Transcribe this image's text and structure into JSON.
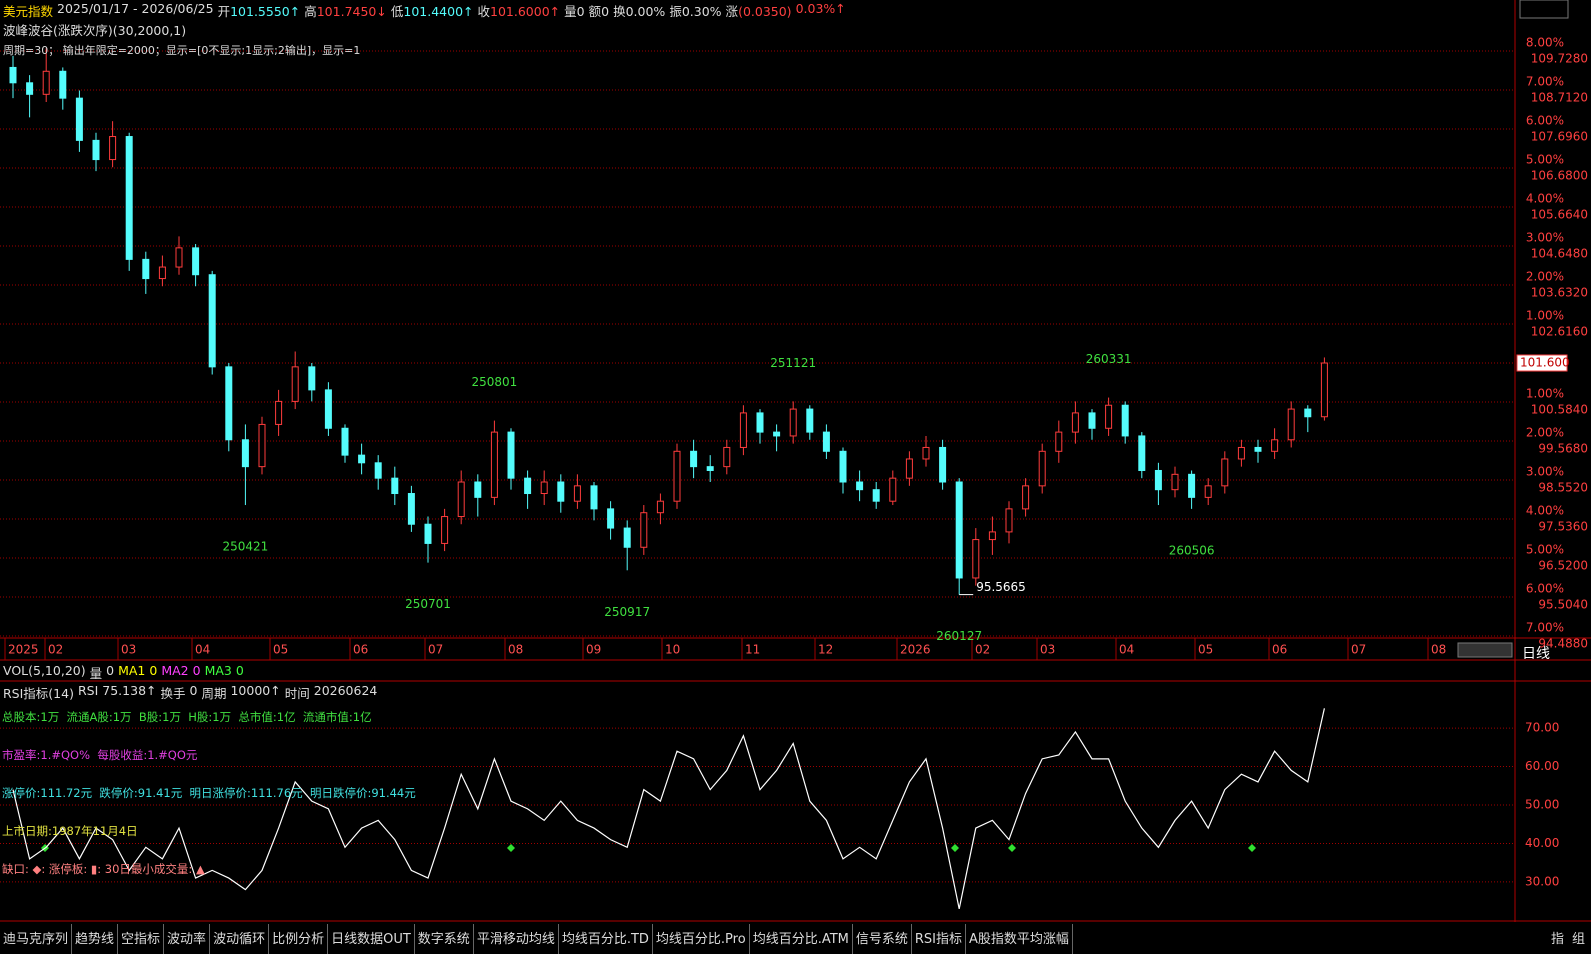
{
  "header": {
    "title": "美元指数",
    "range": "2025/01/17 - 2026/06/25",
    "fields": [
      {
        "label": "开",
        "value": "101.5550↑",
        "color": "#54fcfc"
      },
      {
        "label": "高",
        "value": "101.7450↓",
        "color": "#ff4040"
      },
      {
        "label": "低",
        "value": "101.4400↑",
        "color": "#54fcfc"
      },
      {
        "label": "收",
        "value": "101.6000↑",
        "color": "#ff4040"
      },
      {
        "label": "量",
        "value": "0",
        "color": "#dddddd"
      },
      {
        "label": "额",
        "value": "0",
        "color": "#dddddd"
      },
      {
        "label": "换",
        "value": "0.00%",
        "color": "#dddddd"
      },
      {
        "label": "振",
        "value": "0.30%",
        "color": "#dddddd"
      },
      {
        "label": "涨",
        "value": "(0.0350)",
        "color": "#ff4040"
      },
      {
        "label": "",
        "value": "0.03%↑",
        "color": "#ff4040"
      }
    ]
  },
  "indicator": {
    "title": "波峰波谷(涨跌次序)(30,2000,1)",
    "params": "周期=30； 输出年限定=2000；显示=[0不显示;1显示;2输出]，显示=1"
  },
  "chart_data": [
    {
      "type": "candlestick",
      "open": [
        109.3,
        108.9,
        108.6,
        109.2,
        108.5,
        107.4,
        106.9,
        107.5,
        104.3,
        103.8,
        104.1,
        104.6,
        103.9,
        101.5,
        99.6,
        98.9,
        100.0,
        100.6,
        101.5,
        100.9,
        99.9,
        99.2,
        99.0,
        98.6,
        98.2,
        97.4,
        96.9,
        97.6,
        98.5,
        98.1,
        99.8,
        98.6,
        98.2,
        98.5,
        98.0,
        98.4,
        97.8,
        97.3,
        96.8,
        97.7,
        98.0,
        99.3,
        98.9,
        98.9,
        99.4,
        100.3,
        99.8,
        99.7,
        100.4,
        99.8,
        99.3,
        98.5,
        98.3,
        98.0,
        98.6,
        99.1,
        99.4,
        98.5,
        96.0,
        97.0,
        97.2,
        97.8,
        98.4,
        99.3,
        99.8,
        100.3,
        99.9,
        100.5,
        99.7,
        98.8,
        98.3,
        98.7,
        98.1,
        98.4,
        99.1,
        99.4,
        99.3,
        99.6,
        100.4,
        100.2
      ],
      "high": [
        109.6,
        109.1,
        109.8,
        109.3,
        108.7,
        107.6,
        107.9,
        107.6,
        104.5,
        104.4,
        104.9,
        104.7,
        104.0,
        101.6,
        100.0,
        100.2,
        100.9,
        101.9,
        101.6,
        101.1,
        100.0,
        99.5,
        99.2,
        98.9,
        98.4,
        97.6,
        97.8,
        98.8,
        98.7,
        100.1,
        99.9,
        98.8,
        98.8,
        98.7,
        98.7,
        98.5,
        98.0,
        97.5,
        97.9,
        98.2,
        99.5,
        99.6,
        99.2,
        99.6,
        100.5,
        100.4,
        100.0,
        100.6,
        100.5,
        100.0,
        99.4,
        98.8,
        98.5,
        98.8,
        99.3,
        99.7,
        99.6,
        98.6,
        97.3,
        97.6,
        98.0,
        98.6,
        99.5,
        100.1,
        100.6,
        100.4,
        100.7,
        100.6,
        99.8,
        99.0,
        98.9,
        98.8,
        98.6,
        99.3,
        99.6,
        99.6,
        99.9,
        100.6,
        100.5,
        101.745
      ],
      "low": [
        108.5,
        108.0,
        108.4,
        108.2,
        107.1,
        106.6,
        106.7,
        104.0,
        103.4,
        103.6,
        103.9,
        103.6,
        101.3,
        99.3,
        97.9,
        98.7,
        99.7,
        100.4,
        100.6,
        99.7,
        99.0,
        98.7,
        98.3,
        97.9,
        97.2,
        96.4,
        96.7,
        97.4,
        97.6,
        97.9,
        98.3,
        97.8,
        97.9,
        97.7,
        97.8,
        97.5,
        97.0,
        96.2,
        96.6,
        97.4,
        97.8,
        98.6,
        98.5,
        98.7,
        99.2,
        99.5,
        99.3,
        99.5,
        99.6,
        99.1,
        98.2,
        98.0,
        97.8,
        97.9,
        98.4,
        98.9,
        98.3,
        95.5665,
        95.8,
        96.6,
        96.9,
        97.6,
        98.2,
        99.0,
        99.5,
        99.6,
        99.7,
        99.5,
        98.6,
        97.9,
        98.1,
        97.8,
        97.9,
        98.2,
        98.9,
        99.0,
        99.1,
        99.4,
        99.8,
        100.1
      ],
      "close": [
        108.9,
        108.6,
        109.2,
        108.5,
        107.4,
        106.9,
        107.5,
        104.3,
        103.8,
        104.1,
        104.6,
        103.9,
        101.5,
        99.6,
        98.9,
        100.0,
        100.6,
        101.5,
        100.9,
        99.9,
        99.2,
        99.0,
        98.6,
        98.2,
        97.4,
        96.9,
        97.6,
        98.5,
        98.1,
        99.8,
        98.6,
        98.2,
        98.5,
        98.0,
        98.4,
        97.8,
        97.3,
        96.8,
        97.7,
        98.0,
        99.3,
        98.9,
        98.8,
        99.4,
        100.3,
        99.8,
        99.7,
        100.4,
        99.8,
        99.3,
        98.5,
        98.3,
        98.0,
        98.6,
        99.1,
        99.4,
        98.5,
        96.0,
        97.0,
        97.2,
        97.8,
        98.4,
        99.3,
        99.8,
        100.3,
        99.9,
        100.5,
        99.7,
        98.8,
        98.3,
        98.7,
        98.1,
        98.4,
        99.1,
        99.4,
        99.3,
        99.6,
        100.4,
        100.2,
        101.6
      ],
      "up_color": "#ff3c3c",
      "down_color": "#54fcfc",
      "ylim": [
        94.436,
        110.015
      ],
      "yticks": [
        {
          "value": 109.728,
          "label": "109.7280"
        },
        {
          "value": 108.712,
          "label": "108.7120"
        },
        {
          "value": 107.696,
          "label": "107.6960"
        },
        {
          "value": 106.68,
          "label": "106.6800"
        },
        {
          "value": 105.664,
          "label": "105.6640"
        },
        {
          "value": 104.648,
          "label": "104.6480"
        },
        {
          "value": 103.632,
          "label": "103.6320"
        },
        {
          "value": 102.616,
          "label": "102.6160"
        },
        {
          "value": 100.584,
          "label": "100.5840"
        },
        {
          "value": 99.568,
          "label": "99.5680"
        },
        {
          "value": 98.552,
          "label": "98.5520"
        },
        {
          "value": 97.536,
          "label": "97.5360"
        },
        {
          "value": 96.52,
          "label": "96.5200"
        },
        {
          "value": 95.504,
          "label": "95.5040"
        },
        {
          "value": 94.488,
          "label": "94.4880"
        }
      ],
      "pct_ticks": [
        {
          "value": 8,
          "label": "8.00%"
        },
        {
          "value": 7,
          "label": "7.00%"
        },
        {
          "value": 6,
          "label": "6.00%"
        },
        {
          "value": 5,
          "label": "5.00%"
        },
        {
          "value": 4,
          "label": "4.00%"
        },
        {
          "value": 3,
          "label": "3.00%"
        },
        {
          "value": 2,
          "label": "2.00%"
        },
        {
          "value": 1,
          "label": "1.00%"
        },
        {
          "value": -1,
          "label": "1.00%"
        },
        {
          "value": -2,
          "label": "2.00%"
        },
        {
          "value": -3,
          "label": "3.00%"
        },
        {
          "value": -4,
          "label": "4.00%"
        },
        {
          "value": -5,
          "label": "5.00%"
        },
        {
          "value": -6,
          "label": "6.00%"
        },
        {
          "value": -7,
          "label": "7.00%"
        }
      ],
      "last_price": {
        "value": 101.6,
        "label": "101.600"
      },
      "xtick_labels": [
        "2025",
        "02",
        "03",
        "04",
        "05",
        "06",
        "07",
        "08",
        "09",
        "10",
        "11",
        "12",
        "2026",
        "02",
        "03",
        "04",
        "05",
        "06",
        "07",
        "08"
      ],
      "wave_labels": [
        "250421",
        "250701",
        "250801",
        "250917",
        "251121",
        "260127",
        "260331",
        "260506"
      ],
      "low_label": "95.5665",
      "grid": true
    },
    {
      "type": "line",
      "title": "RSI指标(14)",
      "values": [
        54,
        36,
        39,
        44,
        36,
        44,
        41,
        33,
        39,
        36,
        44,
        31,
        33,
        31,
        28,
        33,
        44,
        56,
        51,
        49,
        39,
        44,
        46,
        41,
        33,
        31,
        44,
        58,
        49,
        62,
        51,
        49,
        46,
        51,
        46,
        44,
        41,
        39,
        54,
        51,
        64,
        62,
        54,
        59,
        68,
        54,
        59,
        66,
        51,
        46,
        36,
        39,
        36,
        46,
        56,
        62,
        44,
        23,
        44,
        46,
        41,
        53,
        62,
        63,
        69,
        62,
        62,
        51,
        44,
        39,
        46,
        51,
        44,
        54,
        58,
        56,
        64,
        59,
        56,
        75.138
      ],
      "color": "#ffffff",
      "ylim": [
        21.4,
        81.2
      ],
      "yticks": [
        {
          "value": 70,
          "label": "70.00"
        },
        {
          "value": 60,
          "label": "60.00"
        },
        {
          "value": 50,
          "label": "50.00"
        },
        {
          "value": 40,
          "label": "40.00"
        },
        {
          "value": 30,
          "label": "30.00"
        }
      ],
      "grid": true
    }
  ],
  "vol_bar": [
    {
      "text": "VOL(5,10,20)",
      "color": "#dddddd"
    },
    {
      "text": "量",
      "color": "#dddddd"
    },
    {
      "text": "0",
      "color": "#dddddd"
    },
    {
      "text": "MA1",
      "color": "#ffff00"
    },
    {
      "text": "0",
      "color": "#ffff00"
    },
    {
      "text": "MA2",
      "color": "#ff40ff"
    },
    {
      "text": "0",
      "color": "#ff40ff"
    },
    {
      "text": "MA3",
      "color": "#40ff40"
    },
    {
      "text": "0",
      "color": "#40ff40"
    }
  ],
  "period_button": "日线",
  "rsi_bar": [
    {
      "text": "RSI指标(14)",
      "color": "#dddddd"
    },
    {
      "text": "RSI",
      "color": "#dddddd"
    },
    {
      "text": "75.138↑",
      "color": "#dddddd"
    },
    {
      "text": "换手",
      "color": "#dddddd"
    },
    {
      "text": "0",
      "color": "#dddddd"
    },
    {
      "text": "周期",
      "color": "#dddddd"
    },
    {
      "text": "10000↑",
      "color": "#dddddd"
    },
    {
      "text": "时间",
      "color": "#dddddd"
    },
    {
      "text": "20260624",
      "color": "#dddddd"
    }
  ],
  "info_lines": [
    {
      "text": "总股本:1万  流通A股:1万  B股:1万  H股:1万  总市值:1亿  流通市值:1亿",
      "color": "#40e040"
    },
    {
      "text": "市盈率:1.#QO%  每股收益:1.#QO元",
      "color": "#e040e0"
    },
    {
      "text": "涨停价:111.72元  跌停价:91.41元  明日涨停价:111.76元  明日跌停价:91.44元",
      "color": "#40e0e0"
    },
    {
      "text": "上市日期:1987年11月4日",
      "color": "#e0e040"
    },
    {
      "text": "缺口: ◆: 涨停板: ▮: 30日最小成交量: ▲",
      "color": "#ff8080"
    }
  ],
  "tabs": [
    "迪马克序列",
    "趋势线",
    "空指标",
    "波动率",
    "波动循环",
    "比例分析",
    "日线数据OUT",
    "数字系统",
    "平滑移动均线",
    "均线百分比.TD",
    "均线百分比.Pro",
    "均线百分比.ATM",
    "信号系统",
    "RSI指标",
    "A股指数平均涨幅"
  ],
  "side_tabs": [
    "指",
    "组"
  ]
}
